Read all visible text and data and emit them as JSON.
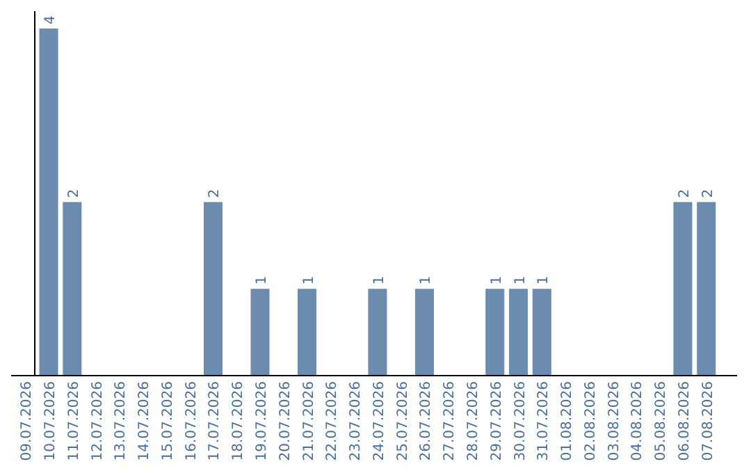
{
  "chart_data": {
    "type": "bar",
    "categories": [
      "09.07.2026",
      "10.07.2026",
      "11.07.2026",
      "12.07.2026",
      "13.07.2026",
      "14.07.2026",
      "15.07.2026",
      "16.07.2026",
      "17.07.2026",
      "18.07.2026",
      "19.07.2026",
      "20.07.2026",
      "21.07.2026",
      "22.07.2026",
      "23.07.2026",
      "24.07.2026",
      "25.07.2026",
      "26.07.2026",
      "27.07.2026",
      "28.07.2026",
      "29.07.2026",
      "30.07.2026",
      "31.07.2026",
      "01.08.2026",
      "02.08.2026",
      "03.08.2026",
      "04.08.2026",
      "05.08.2026",
      "06.08.2026",
      "07.08.2026"
    ],
    "values": [
      0,
      4,
      2,
      0,
      0,
      0,
      0,
      0,
      2,
      0,
      1,
      0,
      1,
      0,
      0,
      1,
      0,
      1,
      0,
      0,
      1,
      1,
      1,
      0,
      0,
      0,
      0,
      0,
      2,
      2
    ],
    "value_labels": [
      null,
      "4",
      "2",
      null,
      null,
      null,
      null,
      null,
      "2",
      null,
      "1",
      null,
      "1",
      null,
      null,
      "1",
      null,
      "1",
      null,
      null,
      "1",
      "1",
      "1",
      null,
      null,
      null,
      null,
      null,
      "2",
      "2"
    ],
    "color": "#6b8cae",
    "ylim": [
      0,
      4.2
    ],
    "tick_labels": "x"
  }
}
